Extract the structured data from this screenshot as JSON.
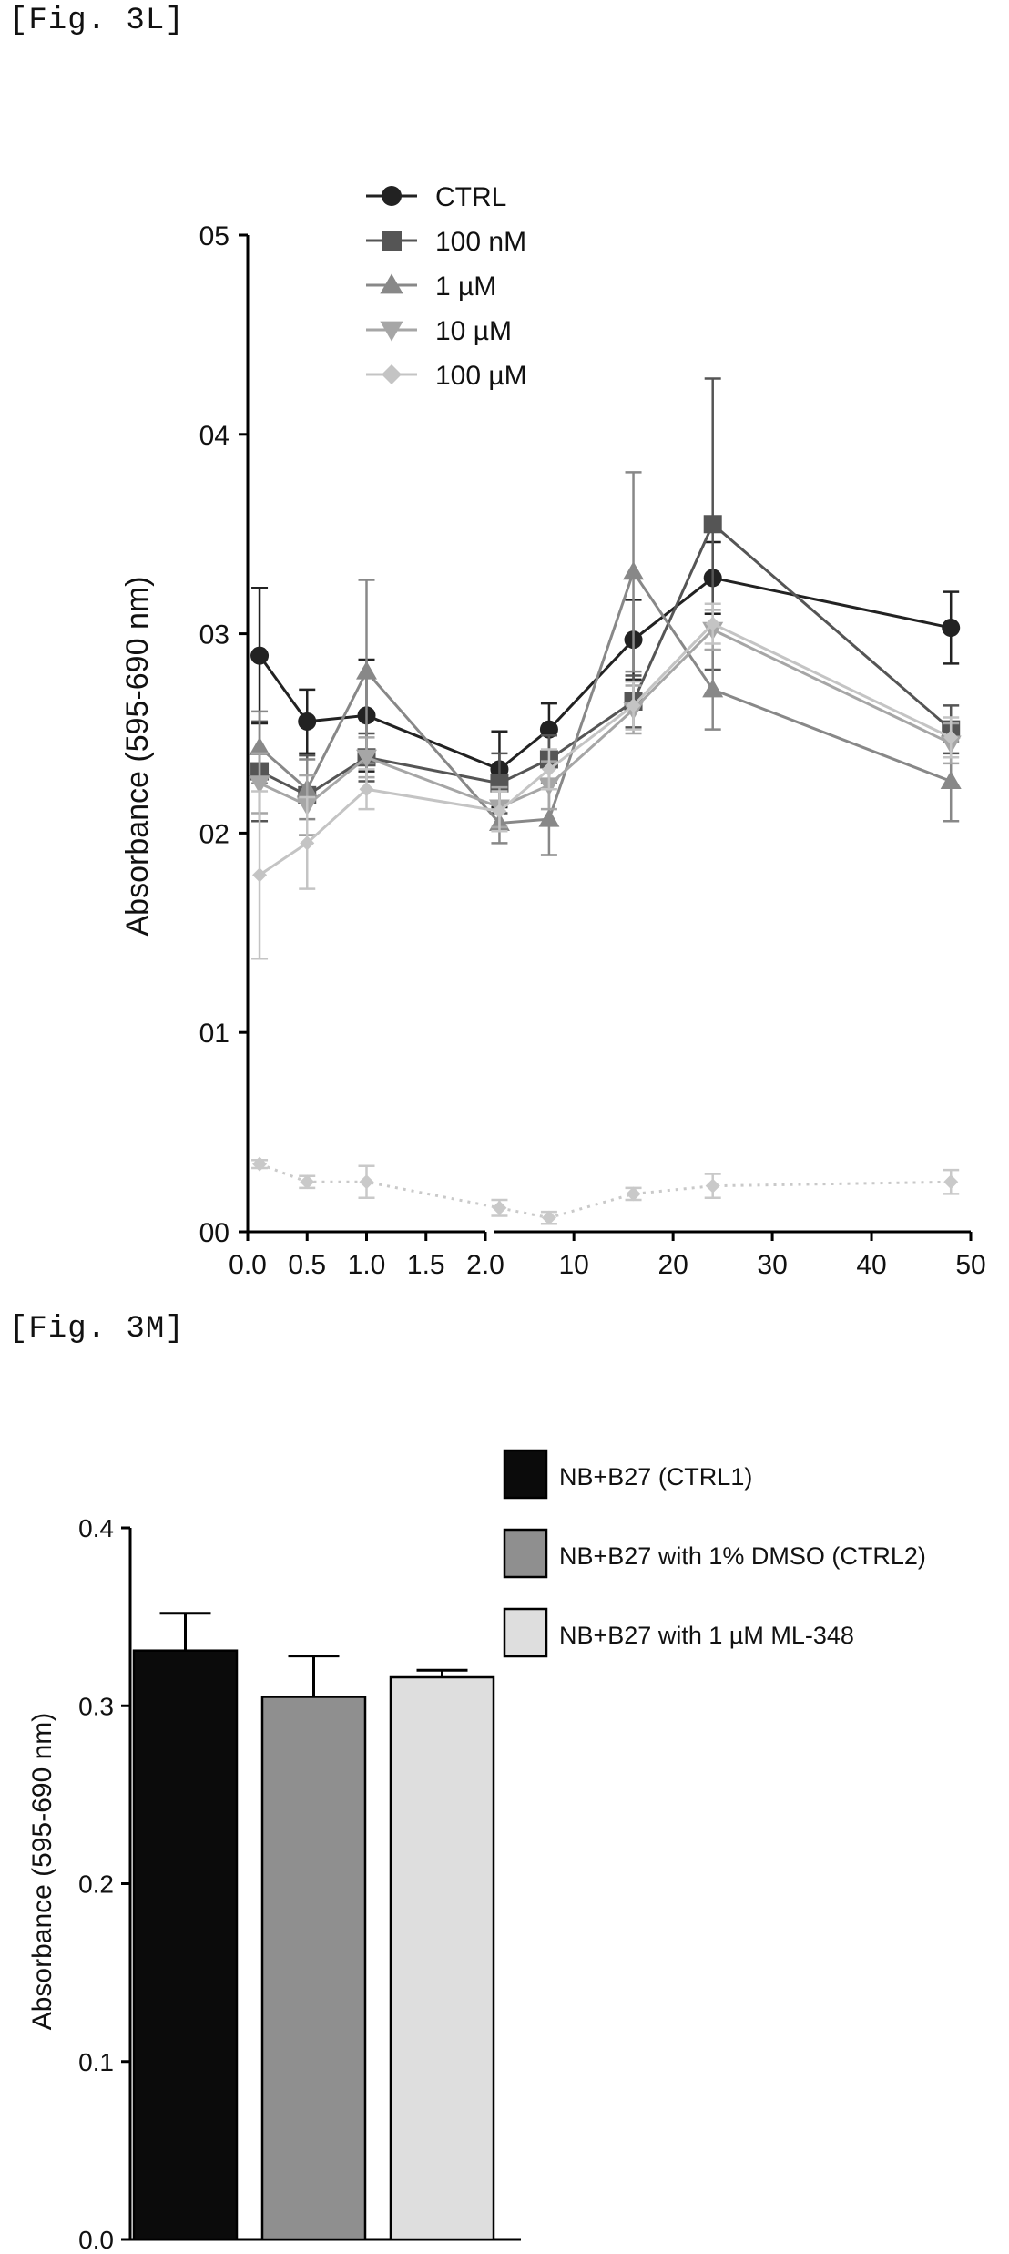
{
  "figure_l": {
    "label": "[Fig. 3L]"
  },
  "figure_m": {
    "label": "[Fig. 3M]"
  },
  "chart_data": [
    {
      "type": "line",
      "ylabel": "Absorbance (595-690 nm)",
      "xlabel": "",
      "y_ticks": [
        "00",
        "01",
        "02",
        "03",
        "04",
        "05"
      ],
      "ylim": [
        0,
        0.5
      ],
      "x_axis": "broken",
      "x_ticks_left": [
        "0.0",
        "0.5",
        "1.0",
        "1.5",
        "2.0"
      ],
      "x_ticks_right": [
        "10",
        "20",
        "30",
        "40",
        "50"
      ],
      "grid": false,
      "legend_position": "top-left",
      "x": [
        0.1,
        0.5,
        1.0,
        2.5,
        7.5,
        16,
        24,
        48
      ],
      "series": [
        {
          "name": "CTRL",
          "marker": "circle",
          "color": "#222222",
          "values": [
            0.289,
            0.256,
            0.259,
            0.232,
            0.252,
            0.297,
            0.328,
            0.303
          ],
          "errors": [
            0.034,
            0.016,
            0.028,
            0.019,
            0.013,
            0.02,
            0.018,
            0.018
          ]
        },
        {
          "name": "100 nM",
          "marker": "square",
          "color": "#555555",
          "values": [
            0.231,
            0.219,
            0.238,
            0.225,
            0.237,
            0.266,
            0.355,
            0.252
          ],
          "errors": [
            0.025,
            0.02,
            0.012,
            0.015,
            0.012,
            0.013,
            0.073,
            0.012
          ]
        },
        {
          "name": "1 µM",
          "marker": "triangle-up",
          "color": "#888888",
          "values": [
            0.243,
            0.222,
            0.281,
            0.205,
            0.207,
            0.331,
            0.272,
            0.226
          ],
          "errors": [
            0.018,
            0.015,
            0.046,
            0.01,
            0.018,
            0.05,
            0.02,
            0.02
          ]
        },
        {
          "name": "10 µM",
          "marker": "triangle-down",
          "color": "#a6a6a6",
          "values": [
            0.225,
            0.214,
            0.238,
            0.213,
            0.224,
            0.262,
            0.302,
            0.245
          ],
          "errors": [
            0.015,
            0.015,
            0.01,
            0.01,
            0.012,
            0.012,
            0.01,
            0.01
          ]
        },
        {
          "name": "100 µM",
          "marker": "diamond",
          "color": "#c4c4c4",
          "values": [
            0.179,
            0.195,
            0.222,
            0.211,
            0.232,
            0.264,
            0.305,
            0.248
          ],
          "errors": [
            0.042,
            0.023,
            0.01,
            0.01,
            0.01,
            0.012,
            0.01,
            0.01
          ]
        },
        {
          "name": "",
          "marker": "diamond",
          "color": "#c9c9c9",
          "values": [
            0.034,
            0.025,
            0.025,
            0.012,
            0.007,
            0.019,
            0.023,
            0.025
          ],
          "errors": [
            0.002,
            0.003,
            0.008,
            0.004,
            0.003,
            0.003,
            0.006,
            0.006
          ]
        }
      ]
    },
    {
      "type": "bar",
      "ylabel": "Absorbance (595-690 nm)",
      "xlabel": "",
      "y_ticks": [
        "0.0",
        "0.1",
        "0.2",
        "0.3",
        "0.4"
      ],
      "ylim": [
        0,
        0.4
      ],
      "grid": false,
      "legend_position": "top-right",
      "categories": [
        "NB+B27 (CTRL1)",
        "NB+B27 with 1% DMSO (CTRL2)",
        "NB+B27 with 1 µM ML-348"
      ],
      "values": [
        0.331,
        0.305,
        0.316
      ],
      "errors": [
        0.021,
        0.023,
        0.004
      ],
      "colors": [
        "#0b0b0b",
        "#8f8f8f",
        "#dedede"
      ]
    }
  ]
}
